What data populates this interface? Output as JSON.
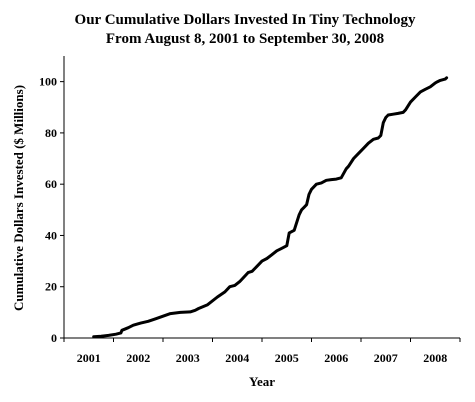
{
  "chart_data": {
    "type": "line",
    "title": "Our Cumulative Dollars Invested In Tiny Technology",
    "subtitle": "From August 8, 2001 to September 30, 2008",
    "xlabel": "Year",
    "ylabel": "Cumulative Dollars Invested ($ Millions)",
    "xlim": [
      2001,
      2009
    ],
    "ylim": [
      0,
      110
    ],
    "x_ticks": [
      "2001",
      "2002",
      "2003",
      "2004",
      "2005",
      "2006",
      "2007",
      "2008"
    ],
    "y_ticks": [
      "0",
      "20",
      "40",
      "60",
      "80",
      "100"
    ],
    "grid": false,
    "legend": "none",
    "line_color": "#000000",
    "series": [
      {
        "x": [
          2001.6,
          2001.75,
          2001.9,
          2002.05,
          2002.15,
          2002.17,
          2002.3,
          2002.4,
          2002.55,
          2002.7,
          2002.85,
          2003.0,
          2003.15,
          2003.35,
          2003.55,
          2003.65,
          2003.72,
          2003.9,
          2004.1,
          2004.25,
          2004.35,
          2004.45,
          2004.55,
          2004.72,
          2004.8,
          2004.9,
          2005.0,
          2005.1,
          2005.2,
          2005.3,
          2005.4,
          2005.5,
          2005.55,
          2005.65,
          2005.75,
          2005.8,
          2005.85,
          2005.9,
          2005.95,
          2006.0,
          2006.1,
          2006.2,
          2006.3,
          2006.4,
          2006.5,
          2006.6,
          2006.7,
          2006.75,
          2006.85,
          2006.95,
          2007.05,
          2007.15,
          2007.25,
          2007.35,
          2007.4,
          2007.45,
          2007.5,
          2007.55,
          2007.65,
          2007.75,
          2007.85,
          2007.9,
          2008.0,
          2008.1,
          2008.2,
          2008.3,
          2008.4,
          2008.5,
          2008.55,
          2008.6,
          2008.7,
          2008.73
        ],
        "y": [
          0.5,
          0.7,
          1.0,
          1.5,
          2.0,
          3.0,
          4.0,
          5.0,
          5.8,
          6.5,
          7.5,
          8.5,
          9.5,
          10.0,
          10.2,
          10.8,
          11.5,
          13.0,
          16.0,
          18.0,
          20.0,
          20.5,
          22.0,
          25.5,
          26.0,
          28.0,
          30.0,
          31.0,
          32.5,
          34.0,
          35.0,
          36.0,
          41.0,
          42.0,
          48.0,
          50.0,
          51.0,
          52.0,
          56.0,
          58.0,
          60.0,
          60.5,
          61.5,
          61.8,
          62.0,
          62.5,
          66.0,
          67.0,
          70.0,
          72.0,
          74.0,
          76.0,
          77.5,
          78.0,
          79.0,
          84.0,
          86.0,
          87.0,
          87.3,
          87.6,
          88.0,
          89.0,
          92.0,
          94.0,
          96.0,
          97.0,
          98.0,
          99.5,
          100.0,
          100.5,
          101.0,
          101.5
        ]
      }
    ]
  }
}
